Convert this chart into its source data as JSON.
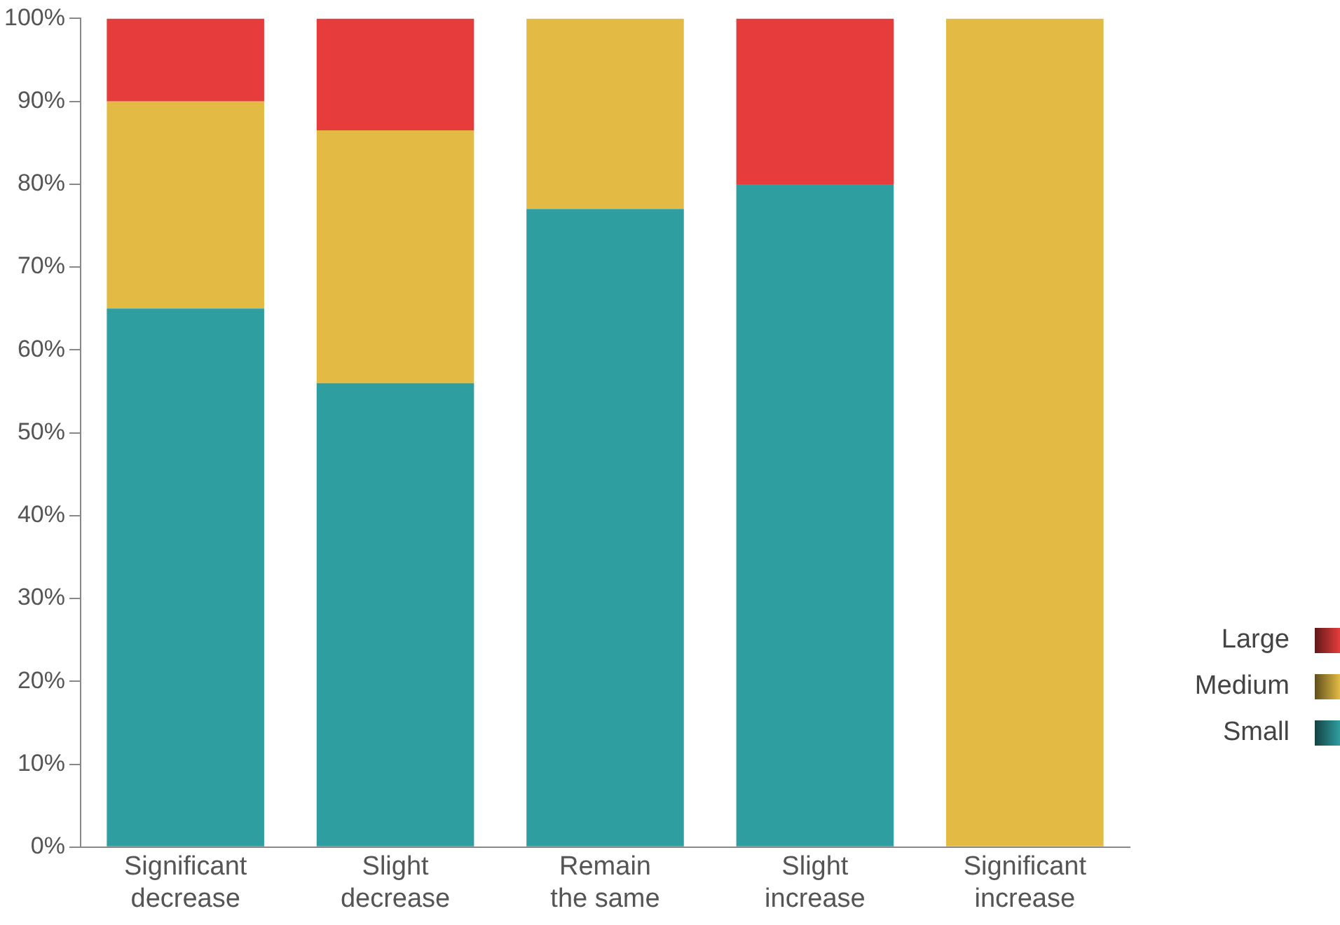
{
  "chart_data": {
    "type": "bar",
    "stacked": true,
    "categories": [
      "Significant decrease",
      "Slight decrease",
      "Remain the same",
      "Slight increase",
      "Significant increase"
    ],
    "series": [
      {
        "name": "Small",
        "color": "#2f9ea0",
        "values": [
          65,
          56,
          77,
          80,
          0
        ]
      },
      {
        "name": "Medium",
        "color": "#e3bb44",
        "values": [
          25,
          30.5,
          23,
          0,
          100
        ]
      },
      {
        "name": "Large",
        "color": "#e63c3c",
        "values": [
          10,
          13.5,
          0,
          20,
          0
        ]
      }
    ],
    "ylim": [
      0,
      100
    ],
    "yticks": [
      {
        "value": 0,
        "label": "0%"
      },
      {
        "value": 10,
        "label": "10%"
      },
      {
        "value": 20,
        "label": "20%"
      },
      {
        "value": 30,
        "label": "30%"
      },
      {
        "value": 40,
        "label": "40%"
      },
      {
        "value": 50,
        "label": "50%"
      },
      {
        "value": 60,
        "label": "60%"
      },
      {
        "value": 70,
        "label": "70%"
      },
      {
        "value": 80,
        "label": "80%"
      },
      {
        "value": 90,
        "label": "90%"
      },
      {
        "value": 100,
        "label": "100%"
      }
    ],
    "grid": false,
    "legend": "right"
  }
}
